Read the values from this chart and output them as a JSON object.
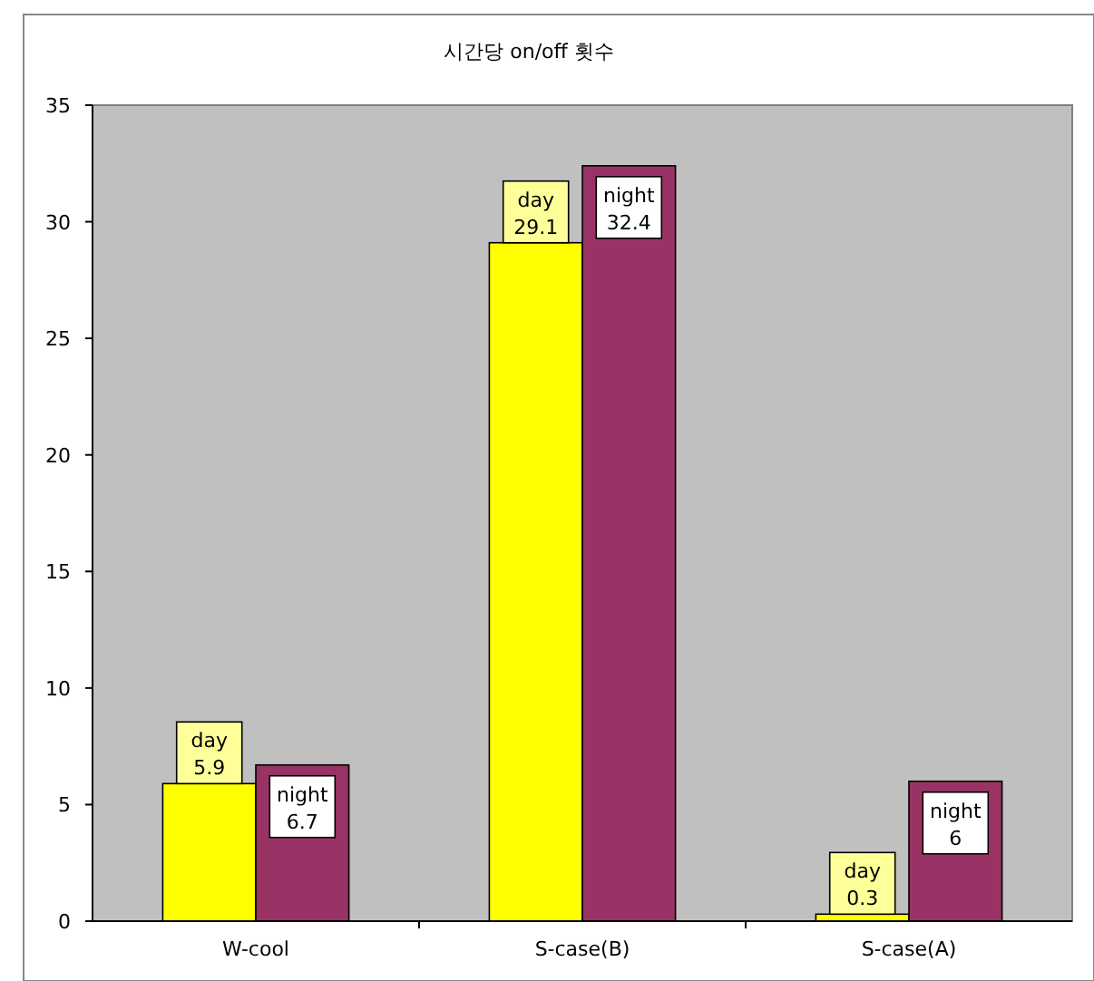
{
  "chart_data": {
    "type": "bar",
    "title": "시간당 on/off 횟수",
    "categories": [
      "W-cool",
      "S-case(B)",
      "S-case(A)"
    ],
    "series": [
      {
        "name": "day",
        "color": "#ffff00",
        "values": [
          5.9,
          29.1,
          0.3
        ]
      },
      {
        "name": "night",
        "color": "#993366",
        "values": [
          6.7,
          32.4,
          6
        ]
      }
    ],
    "ylim": [
      0,
      35
    ],
    "yticks": [
      0,
      5,
      10,
      15,
      20,
      25,
      30,
      35
    ],
    "grid": false,
    "data_labels": true
  }
}
